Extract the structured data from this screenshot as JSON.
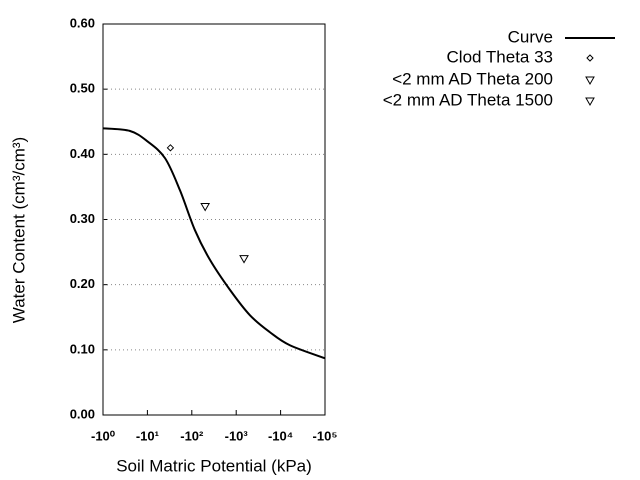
{
  "chart_data": {
    "type": "line",
    "xlabel": "Soil Matric Potential (kPa)",
    "ylabel": "Water Content (cm³/cm³)",
    "xscale": "log",
    "xlim": [
      -1,
      -100000
    ],
    "xticks": [
      {
        "value": -1,
        "label": "-10⁰"
      },
      {
        "value": -10,
        "label": "-10¹"
      },
      {
        "value": -100,
        "label": "-10²"
      },
      {
        "value": -1000,
        "label": "-10³"
      },
      {
        "value": -10000,
        "label": "-10⁴"
      },
      {
        "value": -100000,
        "label": "-10⁵"
      }
    ],
    "ylim": [
      0,
      0.6
    ],
    "yticks": [
      {
        "value": 0,
        "label": "0.00"
      },
      {
        "value": 0.1,
        "label": "0.10"
      },
      {
        "value": 0.2,
        "label": "0.20"
      },
      {
        "value": 0.3,
        "label": "0.30"
      },
      {
        "value": 0.4,
        "label": "0.40"
      },
      {
        "value": 0.5,
        "label": "0.50"
      },
      {
        "value": 0.6,
        "label": "0.60"
      }
    ],
    "grid": true,
    "legend": "outside-right",
    "series": [
      {
        "name": "Curve",
        "color": "#000000",
        "marker": "line",
        "x": [
          -1,
          -4,
          -10,
          -25,
          -54,
          -117,
          -257,
          -724,
          -2045,
          -5754,
          -16200,
          -100000
        ],
        "values": [
          0.44,
          0.436,
          0.42,
          0.394,
          0.345,
          0.284,
          0.238,
          0.192,
          0.153,
          0.127,
          0.107,
          0.087
        ]
      },
      {
        "name": "Clod Theta 33",
        "color": "#000000",
        "marker": "diamond",
        "x": [
          -33
        ],
        "values": [
          0.41
        ]
      },
      {
        "name": "<2 mm AD Theta 200",
        "color": "#000000",
        "marker": "triangle-down",
        "x": [
          -200
        ],
        "values": [
          0.32
        ]
      },
      {
        "name": "<2 mm AD Theta 1500",
        "color": "#000000",
        "marker": "triangle-down",
        "x": [
          -1500
        ],
        "values": [
          0.24
        ]
      }
    ]
  }
}
